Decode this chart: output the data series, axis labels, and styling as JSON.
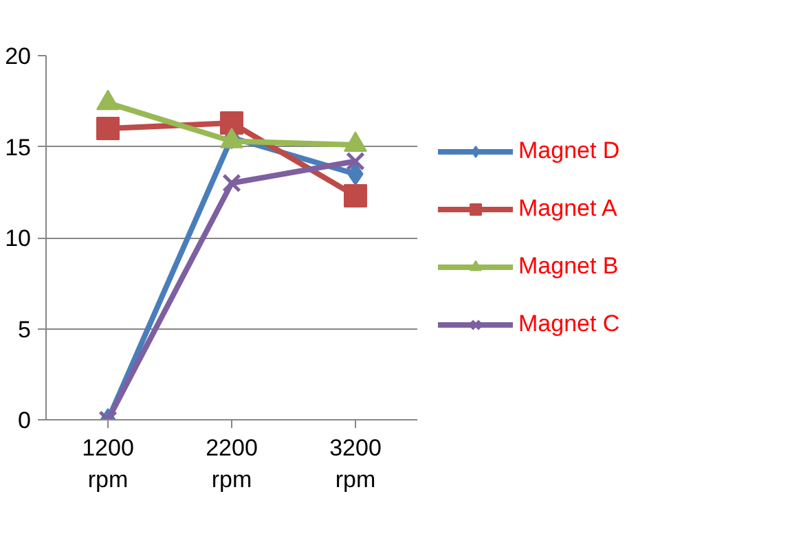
{
  "chart_data": {
    "type": "line",
    "categories": [
      "1200\nrpm",
      "2200\nrpm",
      "3200\nrpm"
    ],
    "ylim": [
      0,
      20
    ],
    "yticks": [
      0,
      5,
      10,
      15,
      20
    ],
    "grid": "y",
    "legend": "right",
    "series": [
      {
        "name": "Magnet D",
        "color": "#4a7ebb",
        "marker": "diamond",
        "values": [
          0,
          15.5,
          13.5
        ]
      },
      {
        "name": "Magnet A",
        "color": "#be4b48",
        "marker": "square",
        "values": [
          16,
          16.3,
          12.3
        ]
      },
      {
        "name": "Magnet B",
        "color": "#98b954",
        "marker": "triangle",
        "values": [
          17.4,
          15.3,
          15.1
        ]
      },
      {
        "name": "Magnet C",
        "color": "#7d60a0",
        "marker": "cross",
        "values": [
          0,
          13,
          14.2
        ]
      }
    ]
  }
}
